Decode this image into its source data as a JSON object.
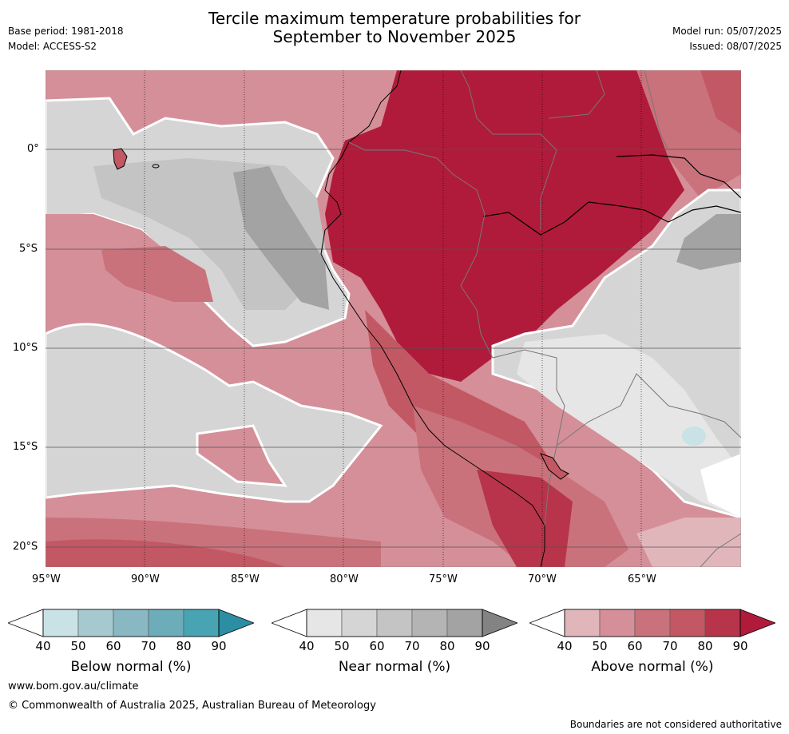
{
  "header": {
    "base_period": "Base period: 1981-2018",
    "model": "Model: ACCESS-S2",
    "title_line1": "Tercile maximum temperature probabilities for",
    "title_line2": "September to November 2025",
    "model_run": "Model run: 05/07/2025",
    "issued": "Issued: 08/07/2025"
  },
  "map": {
    "lat_labels": [
      "0°",
      "5°S",
      "10°S",
      "15°S",
      "20°S"
    ],
    "lon_labels": [
      "95°W",
      "90°W",
      "85°W",
      "80°W",
      "75°W",
      "70°W",
      "65°W"
    ],
    "extent": {
      "lon_min": -95.0,
      "lon_max": -60.0,
      "lat_min": -21.0,
      "lat_max": 4.0
    }
  },
  "colorbars": [
    {
      "name": "below",
      "label": "Below normal (%)",
      "ticks": [
        "40",
        "50",
        "60",
        "70",
        "80",
        "90"
      ],
      "colors": [
        "#ffffff",
        "#c9e2e6",
        "#a6c9cf",
        "#89b8c2",
        "#6cadb9",
        "#48a3b3",
        "#2c8ea3"
      ]
    },
    {
      "name": "near",
      "label": "Near normal (%)",
      "ticks": [
        "40",
        "50",
        "60",
        "70",
        "80",
        "90"
      ],
      "colors": [
        "#ffffff",
        "#e6e6e6",
        "#d5d5d5",
        "#c4c4c4",
        "#b4b4b4",
        "#a3a3a3",
        "#838383"
      ]
    },
    {
      "name": "above",
      "label": "Above normal (%)",
      "ticks": [
        "40",
        "50",
        "60",
        "70",
        "80",
        "90"
      ],
      "colors": [
        "#ffffff",
        "#e1b6bb",
        "#d58f98",
        "#c9727c",
        "#c25863",
        "#b8344a",
        "#b01b3b"
      ]
    }
  ],
  "footer": {
    "url": "www.bom.gov.au/climate",
    "copyright": "© Commonwealth of Australia 2025, Australian Bureau of Meteorology",
    "disclaimer": "Boundaries are not considered authoritative"
  }
}
